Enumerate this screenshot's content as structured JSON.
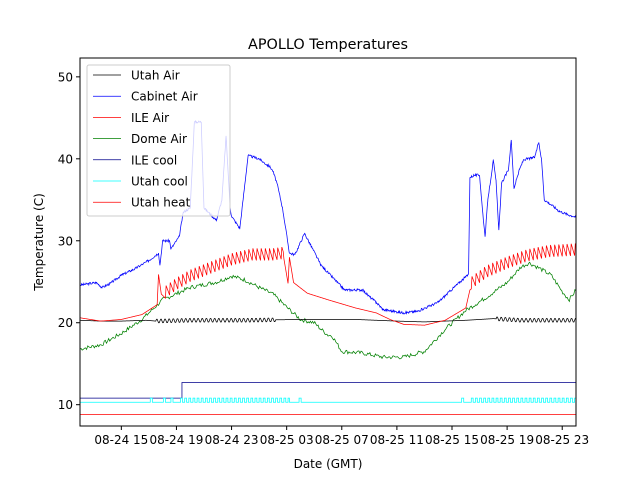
{
  "chart_data": {
    "type": "line",
    "title": "APOLLO Temperatures",
    "xlabel": "Date (GMT)",
    "ylabel": "Temperature (C)",
    "x_unit": "hours since 08-24 00:00 GMT",
    "xlim": [
      12,
      48
    ],
    "ylim": [
      7.4,
      52.3
    ],
    "x_ticks": [
      {
        "value": 15,
        "label": "08-24 15"
      },
      {
        "value": 19,
        "label": "08-24 19"
      },
      {
        "value": 23,
        "label": "08-24 23"
      },
      {
        "value": 27,
        "label": "08-25 03"
      },
      {
        "value": 31,
        "label": "08-25 07"
      },
      {
        "value": 35,
        "label": "08-25 11"
      },
      {
        "value": 39,
        "label": "08-25 15"
      },
      {
        "value": 43,
        "label": "08-25 19"
      },
      {
        "value": 47,
        "label": "08-25 23"
      }
    ],
    "y_ticks": [
      {
        "value": 10,
        "label": "10"
      },
      {
        "value": 20,
        "label": "20"
      },
      {
        "value": 30,
        "label": "30"
      },
      {
        "value": 40,
        "label": "40"
      },
      {
        "value": 50,
        "label": "50"
      }
    ],
    "grid": false,
    "legend_position": "upper-left",
    "series": [
      {
        "name": "Utah Air",
        "color": "#000000",
        "x": [
          12,
          13.5,
          15,
          16.8,
          17.5,
          20,
          24,
          28,
          32,
          35,
          37,
          40,
          42,
          44,
          46,
          48
        ],
        "y": [
          20.3,
          20.2,
          20.2,
          20.3,
          20.2,
          20.3,
          20.3,
          20.4,
          20.4,
          20.2,
          20.1,
          20.3,
          20.5,
          20.3,
          20.3,
          20.3
        ],
        "oscillation": [
          {
            "from": 17.5,
            "to": 26.2,
            "amplitude": 0.25
          },
          {
            "from": 42.2,
            "to": 48,
            "amplitude": 0.25
          }
        ]
      },
      {
        "name": "Cabinet Air",
        "color": "#0000ff",
        "x": [
          12,
          13.2,
          13.6,
          14.2,
          15,
          16,
          17,
          17.7,
          17.8,
          18,
          18.5,
          18.6,
          19.2,
          19.5,
          20,
          20.3,
          20.8,
          21,
          21.3,
          21.9,
          22.3,
          22.6,
          22.9,
          23,
          23.6,
          24.2,
          25,
          25.3,
          25.8,
          26,
          26.3,
          26.7,
          27.2,
          27.6,
          28.3,
          29.5,
          31.2,
          32.5,
          33,
          33.5,
          34,
          35.5,
          36.5,
          38,
          39.2,
          40.2,
          40.3,
          40.6,
          41,
          41.2,
          41.4,
          41.6,
          42,
          42.2,
          42.4,
          42.6,
          43.1,
          43.3,
          43.5,
          43.9,
          44.2,
          44.8,
          45,
          45.3,
          45.5,
          45.7,
          46.2,
          46.8,
          47.4,
          48
        ],
        "y": [
          24.6,
          24.9,
          24.3,
          24.8,
          25.8,
          26.6,
          27.6,
          28.5,
          27.0,
          30.0,
          30.0,
          29.0,
          30.5,
          33.5,
          34.0,
          44.5,
          44.5,
          34.0,
          33.5,
          32.5,
          35.0,
          42.8,
          34.0,
          33.0,
          31.5,
          40.4,
          40.0,
          39.6,
          39.0,
          38.5,
          37.0,
          34.0,
          28.5,
          28.3,
          30.9,
          27.0,
          24.0,
          24.0,
          23.2,
          22.5,
          21.6,
          21.2,
          21.4,
          22.5,
          24.4,
          25.9,
          37.7,
          38.0,
          38.0,
          34.0,
          30.5,
          35.0,
          39.8,
          37.2,
          31.3,
          37.0,
          38.7,
          42.3,
          36.4,
          38.7,
          39.9,
          40.1,
          40.2,
          42.0,
          39.9,
          35.0,
          34.4,
          33.6,
          33.2,
          32.9
        ]
      },
      {
        "name": "ILE Air",
        "color": "#ff0000",
        "x": [
          12,
          13.5,
          15,
          16.5,
          17.6,
          17.7,
          17.9,
          18.2,
          19,
          20,
          21.5,
          23,
          24.5,
          26,
          26.8,
          27.1,
          27.2,
          27.5,
          28.5,
          30,
          32,
          33.5,
          34.5,
          35.5,
          37,
          38.5,
          40,
          40.3,
          41.5,
          43,
          44.5,
          46,
          48
        ],
        "y": [
          20.6,
          20.2,
          20.4,
          21.0,
          22.2,
          25.9,
          23.5,
          23.0,
          24.0,
          25.0,
          26.0,
          27.0,
          27.6,
          27.6,
          27.8,
          24.8,
          28.0,
          24.9,
          23.6,
          22.8,
          21.8,
          21.2,
          20.4,
          19.8,
          19.7,
          20.3,
          21.8,
          24.0,
          25.5,
          26.6,
          27.5,
          28.0,
          28.2
        ],
        "oscillation": [
          {
            "from": 18.2,
            "to": 26.8,
            "amplitude": 1.5
          },
          {
            "from": 40.4,
            "to": 48,
            "amplitude": 1.5
          }
        ]
      },
      {
        "name": "Dome Air",
        "color": "#008000",
        "x": [
          12,
          13.5,
          15,
          16.5,
          18,
          20,
          22,
          23,
          24,
          25,
          26,
          27,
          28,
          29,
          29.5,
          30,
          30.3,
          31,
          32.5,
          34,
          35.5,
          37,
          38.5,
          40,
          41.5,
          43,
          44,
          44.6,
          45.5,
          46.2,
          47,
          47.5,
          48
        ],
        "y": [
          16.8,
          17.3,
          18.7,
          20.4,
          22.8,
          24.3,
          25.0,
          25.7,
          25.2,
          24.3,
          23.5,
          21.9,
          20.4,
          20.0,
          19.2,
          18.5,
          18.4,
          16.5,
          16.3,
          15.8,
          15.8,
          16.5,
          19.2,
          21.5,
          23.1,
          24.9,
          26.8,
          27.3,
          26.5,
          25.8,
          23.8,
          22.8,
          24.0
        ]
      },
      {
        "name": "ILE cool",
        "color": "#00008b",
        "x": [
          12,
          19.4,
          19.4,
          48
        ],
        "y": [
          10.8,
          10.8,
          12.7,
          12.7
        ]
      },
      {
        "name": "Utah cool",
        "color": "#00ffff",
        "x": [
          12,
          48
        ],
        "y": [
          10.3,
          10.3
        ],
        "pulses": {
          "base": 10.3,
          "high": 10.8,
          "ranges": [
            {
              "from": 17.1,
              "to": 17.25
            },
            {
              "from": 18.05,
              "to": 18.2
            },
            {
              "from": 18.6,
              "to": 18.75
            },
            {
              "from": 19.3,
              "to": 27.2,
              "period": 0.3,
              "duty": 0.45
            },
            {
              "from": 27.9,
              "to": 28.05
            },
            {
              "from": 39.7,
              "to": 39.85
            },
            {
              "from": 40.4,
              "to": 48,
              "period": 0.3,
              "duty": 0.45
            }
          ]
        }
      },
      {
        "name": "Utah heat",
        "color": "#ff0000",
        "x": [
          12,
          48
        ],
        "y": [
          8.8,
          8.8
        ]
      }
    ]
  }
}
